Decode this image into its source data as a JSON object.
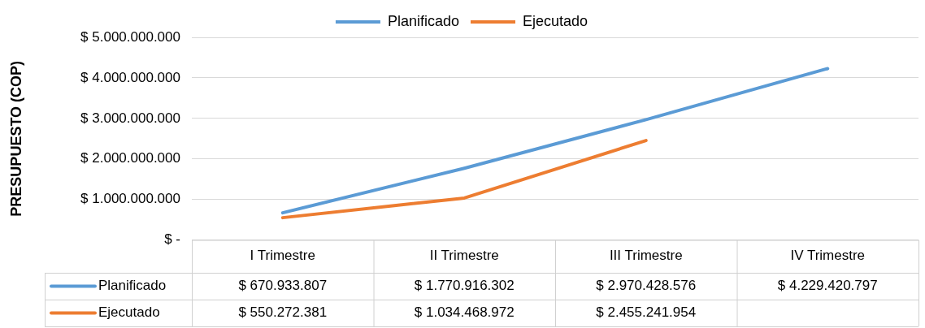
{
  "chart_data": {
    "type": "line",
    "ylabel": "PRESUPUESTO (COP)",
    "categories": [
      "I Trimestre",
      "II Trimestre",
      "III Trimestre",
      "IV Trimestre"
    ],
    "series": [
      {
        "name": "Planificado",
        "color": "#5b9bd5",
        "values": [
          670933807,
          1770916302,
          2970428576,
          4229420797
        ],
        "value_labels": [
          "$ 670.933.807",
          "$ 1.770.916.302",
          "$ 2.970.428.576",
          "$ 4.229.420.797"
        ]
      },
      {
        "name": "Ejecutado",
        "color": "#ed7d31",
        "values": [
          550272381,
          1034468972,
          2455241954,
          null
        ],
        "value_labels": [
          "$ 550.272.381",
          "$ 1.034.468.972",
          "$ 2.455.241.954",
          null
        ]
      }
    ],
    "ylim": [
      0,
      5000000000
    ],
    "yticks": [
      {
        "value": 0,
        "label": "$ -"
      },
      {
        "value": 1000000000,
        "label": "$ 1.000.000.000"
      },
      {
        "value": 2000000000,
        "label": "$ 2.000.000.000"
      },
      {
        "value": 3000000000,
        "label": "$ 3.000.000.000"
      },
      {
        "value": 4000000000,
        "label": "$ 4.000.000.000"
      },
      {
        "value": 5000000000,
        "label": "$ 5.000.000.000"
      }
    ],
    "grid": "y",
    "legend": "top",
    "marker": "none",
    "line_style": "solid"
  }
}
